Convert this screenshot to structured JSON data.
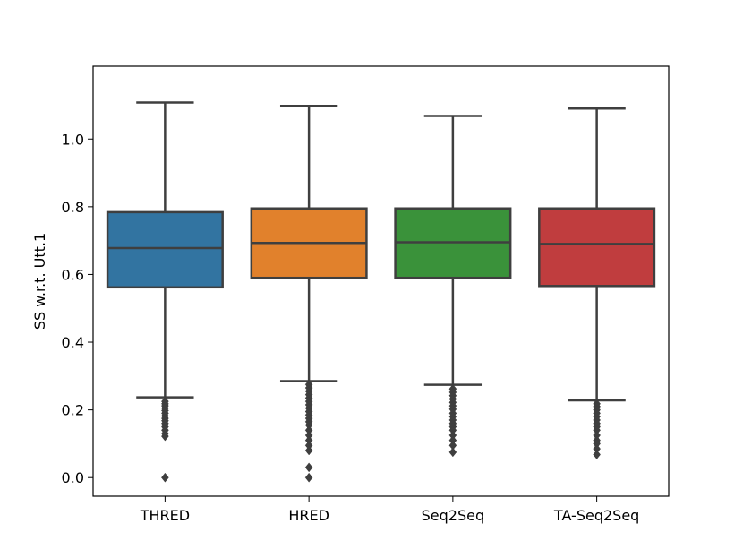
{
  "chart_data": {
    "type": "box",
    "title": "",
    "xlabel": "",
    "ylabel": "SS w.r.t. Utt.1",
    "ylim": [
      -0.055,
      1.215
    ],
    "yticks": [
      0.0,
      0.2,
      0.4,
      0.6,
      0.8,
      1.0
    ],
    "ytick_labels": [
      "0.0",
      "0.2",
      "0.4",
      "0.6",
      "0.8",
      "1.0"
    ],
    "grid": false,
    "categories": [
      "THRED",
      "HRED",
      "Seq2Seq",
      "TA-Seq2Seq"
    ],
    "boxes": [
      {
        "name": "THRED",
        "color": "#3274a1",
        "whisker_low": 0.237,
        "q1": 0.562,
        "median": 0.678,
        "q3": 0.784,
        "whisker_high": 1.108,
        "outliers": [
          0.225,
          0.218,
          0.212,
          0.205,
          0.198,
          0.19,
          0.182,
          0.175,
          0.168,
          0.16,
          0.15,
          0.14,
          0.13,
          0.122,
          0.0
        ]
      },
      {
        "name": "HRED",
        "color": "#e1812c",
        "whisker_low": 0.285,
        "q1": 0.59,
        "median": 0.693,
        "q3": 0.795,
        "whisker_high": 1.098,
        "outliers": [
          0.275,
          0.265,
          0.255,
          0.245,
          0.235,
          0.225,
          0.215,
          0.205,
          0.195,
          0.185,
          0.175,
          0.165,
          0.155,
          0.14,
          0.125,
          0.11,
          0.095,
          0.08,
          0.03,
          0.0
        ]
      },
      {
        "name": "Seq2Seq",
        "color": "#3a923a",
        "whisker_low": 0.274,
        "q1": 0.59,
        "median": 0.695,
        "q3": 0.795,
        "whisker_high": 1.068,
        "outliers": [
          0.262,
          0.252,
          0.242,
          0.232,
          0.222,
          0.212,
          0.202,
          0.19,
          0.18,
          0.17,
          0.16,
          0.15,
          0.14,
          0.125,
          0.11,
          0.095,
          0.075
        ]
      },
      {
        "name": "TA-Seq2Seq",
        "color": "#c03d3e",
        "whisker_low": 0.228,
        "q1": 0.566,
        "median": 0.69,
        "q3": 0.795,
        "whisker_high": 1.09,
        "outliers": [
          0.218,
          0.21,
          0.2,
          0.19,
          0.18,
          0.17,
          0.16,
          0.15,
          0.14,
          0.125,
          0.11,
          0.1,
          0.085,
          0.068
        ]
      }
    ]
  }
}
